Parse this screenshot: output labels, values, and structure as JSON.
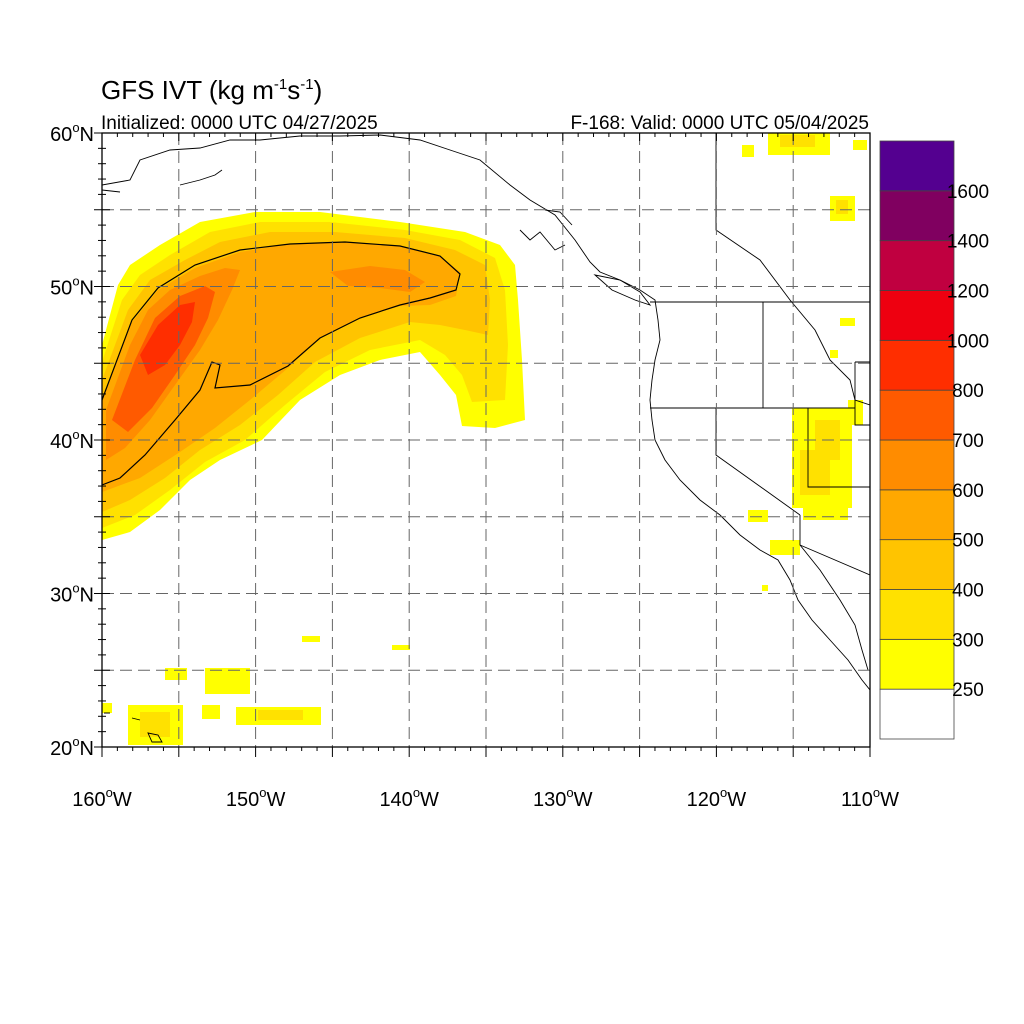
{
  "title": {
    "main": "GFS IVT (kg m",
    "sup1": "-1",
    "mid": "s",
    "sup2": "-1",
    "end": ")"
  },
  "subtitle": {
    "left": "Initialized: 0000 UTC 04/27/2025",
    "right": "F-168: Valid: 0000 UTC 05/04/2025"
  },
  "axes": {
    "lat_labels": [
      {
        "text": "60",
        "suffix": "N",
        "value": 60
      },
      {
        "text": "50",
        "suffix": "N",
        "value": 50
      },
      {
        "text": "40",
        "suffix": "N",
        "value": 40
      },
      {
        "text": "30",
        "suffix": "N",
        "value": 30
      },
      {
        "text": "20",
        "suffix": "N",
        "value": 20
      }
    ],
    "lon_labels": [
      {
        "text": "160",
        "suffix": "W",
        "value": -160
      },
      {
        "text": "150",
        "suffix": "W",
        "value": -150
      },
      {
        "text": "140",
        "suffix": "W",
        "value": -140
      },
      {
        "text": "130",
        "suffix": "W",
        "value": -130
      },
      {
        "text": "120",
        "suffix": "W",
        "value": -120
      },
      {
        "text": "110",
        "suffix": "W",
        "value": -110
      }
    ],
    "lon_range": [
      -160,
      -110
    ],
    "lat_range": [
      20,
      60
    ]
  },
  "colorbar": {
    "labels": [
      "250",
      "300",
      "400",
      "500",
      "600",
      "700",
      "800",
      "1000",
      "1200",
      "1400",
      "1600"
    ],
    "colors": [
      "#ffffff",
      "#ffff00",
      "#ffe100",
      "#ffc400",
      "#ffa800",
      "#ff8c00",
      "#ff5a00",
      "#ff2e00",
      "#ee0010",
      "#c00040",
      "#800060",
      "#540090"
    ]
  },
  "colors": {
    "c250": "#ffff00",
    "c300": "#ffe100",
    "c400": "#ffc400",
    "c500": "#ffa800",
    "c600": "#ff8c00",
    "c700": "#ff5a00",
    "c800": "#ff2e00"
  }
}
